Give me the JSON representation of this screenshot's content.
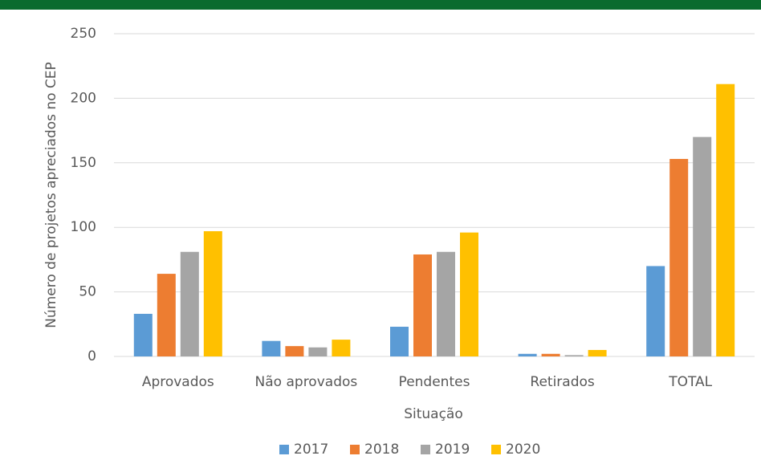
{
  "chart_data": {
    "type": "bar",
    "categories": [
      "Aprovados",
      "Não aprovados",
      "Pendentes",
      "Retirados",
      "TOTAL"
    ],
    "series": [
      {
        "name": "2017",
        "color": "#5b9bd5",
        "values": [
          33,
          12,
          23,
          2,
          70
        ]
      },
      {
        "name": "2018",
        "color": "#ed7d31",
        "values": [
          64,
          8,
          79,
          2,
          153
        ]
      },
      {
        "name": "2019",
        "color": "#a5a5a5",
        "values": [
          81,
          7,
          81,
          1,
          170
        ]
      },
      {
        "name": "2020",
        "color": "#ffc000",
        "values": [
          97,
          13,
          96,
          5,
          211
        ]
      }
    ],
    "xlabel": "Situação",
    "ylabel": "Número de projetos apreciados no CEP",
    "ylim": [
      0,
      250
    ],
    "yticks": [
      0,
      50,
      100,
      150,
      200,
      250
    ],
    "grid": true,
    "legend": "bottom"
  }
}
